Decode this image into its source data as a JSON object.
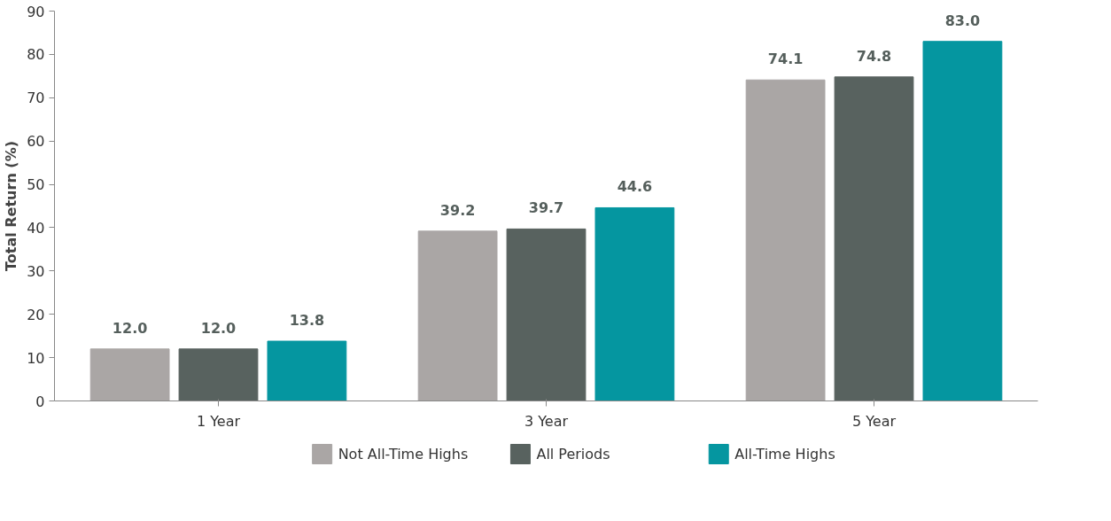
{
  "chart_data": {
    "type": "bar",
    "ylabel": "Total Return (%)",
    "categories": [
      "1 Year",
      "3 Year",
      "5 Year"
    ],
    "series": [
      {
        "name": "Not All-Time Highs",
        "color": "#aaa6a5",
        "values": [
          12,
          39.2,
          74.1
        ],
        "value_labels": [
          "12.0",
          "39.2",
          "74.1"
        ]
      },
      {
        "name": "All Periods",
        "color": "#58625f",
        "values": [
          12,
          39.7,
          74.8
        ],
        "value_labels": [
          "12.0",
          "39.7",
          "74.8"
        ]
      },
      {
        "name": "All-Time Highs",
        "color": "#0596a0",
        "values": [
          13.8,
          44.6,
          83
        ],
        "value_labels": [
          "13.8",
          "44.6",
          "83.0"
        ]
      }
    ],
    "ylim": [
      0,
      90
    ],
    "yticks": [
      0,
      10,
      20,
      30,
      40,
      50,
      60,
      70,
      80,
      90
    ],
    "grid": false,
    "legend": "bottom"
  }
}
